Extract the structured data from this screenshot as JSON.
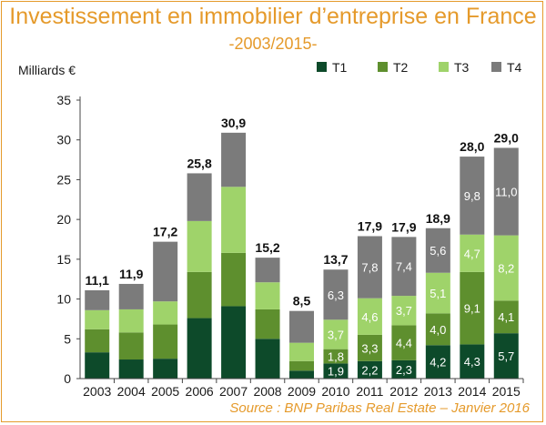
{
  "chart_data": {
    "type": "bar",
    "stacked": true,
    "title": "Investissement en immobilier d’entreprise en France",
    "subtitle": "-2003/2015-",
    "ylabel": "Milliards €",
    "source": "Source : BNP Paribas Real Estate – Janvier 2016",
    "ylim": [
      0,
      35
    ],
    "yticks": [
      "0",
      "5",
      "10",
      "15",
      "20",
      "25",
      "30",
      "35"
    ],
    "ytick_values": [
      0,
      5,
      10,
      15,
      20,
      25,
      30,
      35
    ],
    "legend_position": "top-right",
    "categories": [
      "2003",
      "2004",
      "2005",
      "2006",
      "2007",
      "2008",
      "2009",
      "2010",
      "2011",
      "2012",
      "2013",
      "2014",
      "2015"
    ],
    "series": [
      {
        "name": "T1",
        "color": "#0d4a2a",
        "values": [
          3.3,
          2.4,
          2.5,
          7.6,
          9.1,
          5.0,
          1.0,
          1.9,
          2.2,
          2.3,
          4.2,
          4.3,
          5.7
        ]
      },
      {
        "name": "T2",
        "color": "#5e8f2e",
        "values": [
          2.9,
          3.4,
          4.3,
          5.8,
          6.7,
          3.7,
          1.2,
          1.8,
          3.3,
          4.4,
          4.0,
          9.1,
          4.1
        ]
      },
      {
        "name": "T3",
        "color": "#9fd36a",
        "values": [
          2.4,
          2.9,
          2.9,
          6.4,
          8.3,
          3.4,
          2.3,
          3.7,
          4.6,
          3.7,
          5.1,
          4.7,
          8.2
        ]
      },
      {
        "name": "T4",
        "color": "#7b7b7b",
        "values": [
          2.5,
          3.2,
          7.5,
          6.0,
          6.8,
          3.1,
          4.0,
          6.3,
          7.8,
          7.4,
          5.6,
          9.8,
          11.0
        ]
      }
    ],
    "segment_labels": [
      [
        "",
        "",
        "",
        ""
      ],
      [
        "",
        "",
        "",
        ""
      ],
      [
        "",
        "",
        "",
        ""
      ],
      [
        "",
        "",
        "",
        ""
      ],
      [
        "",
        "",
        "",
        ""
      ],
      [
        "",
        "",
        "",
        ""
      ],
      [
        "",
        "",
        "",
        ""
      ],
      [
        "1,9",
        "1,8",
        "3,7",
        "6,3"
      ],
      [
        "2,2",
        "3,3",
        "4,6",
        "7,8"
      ],
      [
        "2,3",
        "4,4",
        "3,7",
        "7,4"
      ],
      [
        "4,2",
        "4,0",
        "5,1",
        "5,6"
      ],
      [
        "4,3",
        "9,1",
        "4,7",
        "9,8"
      ],
      [
        "5,7",
        "4,1",
        "8,2",
        "11,0"
      ]
    ],
    "totals": [
      "11,1",
      "11,9",
      "17,2",
      "25,8",
      "30,9",
      "15,2",
      "8,5",
      "13,7",
      "17,9",
      "17,9",
      "18,9",
      "28,0",
      "29,0"
    ]
  }
}
